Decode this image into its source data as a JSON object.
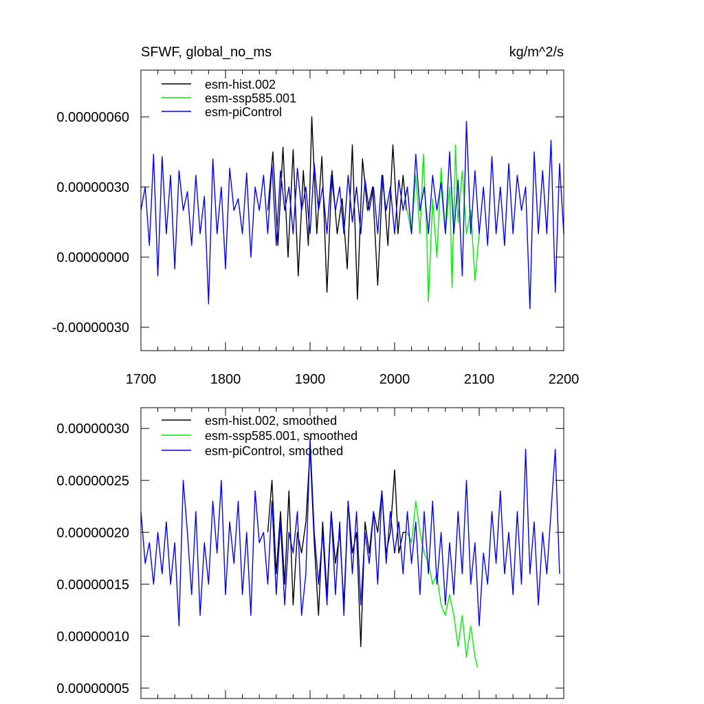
{
  "chart_data": [
    {
      "type": "line",
      "title_left": "SFWF, global_no_ms",
      "title_right": "kg/m^2/s",
      "xlim": [
        1700,
        2200
      ],
      "ylim": [
        -4e-07,
        8e-07
      ],
      "x_ticks": [
        1700,
        1800,
        1900,
        2000,
        2100,
        2200
      ],
      "x_tick_labels": [
        "1700",
        "1800",
        "1900",
        "2000",
        "2100",
        "2200"
      ],
      "y_ticks": [
        -3e-07,
        0.0,
        3e-07,
        6e-07
      ],
      "y_tick_labels": [
        "-0.00000030",
        "0.00000000",
        "0.00000030",
        "0.00000060"
      ],
      "legend_position": "top-left",
      "series": [
        {
          "name": "esm-hist.002",
          "color": "#000000",
          "x": [
            1850,
            1856,
            1862,
            1868,
            1874,
            1880,
            1886,
            1892,
            1898,
            1902,
            1908,
            1914,
            1920,
            1926,
            1932,
            1938,
            1944,
            1950,
            1956,
            1962,
            1968,
            1974,
            1980,
            1986,
            1992,
            1998,
            2004,
            2010,
            2014
          ],
          "y": [
            2e-07,
            4.5e-07,
            5e-08,
            4.7e-07,
            0.0,
            4.6e-07,
            -8e-08,
            3.7e-07,
            5e-08,
            6e-07,
            1e-07,
            4.3e-07,
            -1.5e-07,
            3.7e-07,
            1e-07,
            2.5e-07,
            -5e-08,
            4.8e-07,
            -1.8e-07,
            4.2e-07,
            2e-07,
            3e-07,
            -1.2e-07,
            3.5e-07,
            5e-08,
            4.8e-07,
            1e-07,
            3.5e-07,
            2e-07
          ]
        },
        {
          "name": "esm-ssp585.001",
          "color": "#00ee00",
          "x": [
            2015,
            2020,
            2025,
            2030,
            2034,
            2038,
            2040,
            2045,
            2050,
            2055,
            2060,
            2065,
            2068,
            2072,
            2075,
            2080,
            2085,
            2090,
            2095,
            2100
          ],
          "y": [
            2e-07,
            1e-07,
            3.5e-07,
            1e-07,
            4.4e-07,
            1e-07,
            -1.9e-07,
            2.5e-07,
            0.0,
            3.8e-07,
            1e-07,
            3e-07,
            -1.3e-07,
            4.8e-07,
            1.5e-07,
            3.7e-07,
            1e-07,
            2e-07,
            -1e-07,
            1e-07
          ]
        },
        {
          "name": "esm-piControl",
          "color": "#0000ee",
          "x": [
            1700,
            1705,
            1710,
            1715,
            1720,
            1725,
            1730,
            1735,
            1740,
            1745,
            1750,
            1755,
            1760,
            1765,
            1770,
            1775,
            1780,
            1785,
            1790,
            1795,
            1800,
            1805,
            1810,
            1815,
            1820,
            1825,
            1830,
            1835,
            1840,
            1845,
            1850,
            1855,
            1860,
            1865,
            1870,
            1875,
            1880,
            1885,
            1890,
            1895,
            1900,
            1905,
            1910,
            1915,
            1920,
            1925,
            1930,
            1935,
            1940,
            1945,
            1950,
            1955,
            1960,
            1965,
            1970,
            1975,
            1980,
            1985,
            1990,
            1995,
            2000,
            2005,
            2010,
            2015,
            2020,
            2025,
            2030,
            2035,
            2040,
            2045,
            2050,
            2055,
            2060,
            2065,
            2070,
            2075,
            2080,
            2085,
            2090,
            2095,
            2100,
            2105,
            2110,
            2115,
            2120,
            2125,
            2130,
            2135,
            2140,
            2145,
            2150,
            2155,
            2160,
            2165,
            2170,
            2175,
            2180,
            2185,
            2190,
            2195,
            2200
          ],
          "y": [
            2e-07,
            3e-07,
            5e-08,
            4.4e-07,
            -8e-08,
            4.3e-07,
            1e-07,
            3.5e-07,
            -5e-08,
            3.7e-07,
            2e-07,
            2.8e-07,
            5e-08,
            3.5e-07,
            1e-07,
            2.6e-07,
            -2e-07,
            4.2e-07,
            1e-07,
            3e-07,
            -5e-08,
            3.8e-07,
            2e-07,
            2.5e-07,
            1e-07,
            3.6e-07,
            0.0,
            3e-07,
            2e-07,
            3.5e-07,
            1e-07,
            4e-07,
            5e-08,
            3.7e-07,
            2e-07,
            3e-07,
            1e-07,
            3.8e-07,
            2e-07,
            3e-07,
            1e-07,
            4e-07,
            2e-07,
            3e-07,
            1e-07,
            3.5e-07,
            2e-07,
            3e-07,
            1e-07,
            3.5e-07,
            1.5e-07,
            3e-07,
            1e-07,
            3.3e-07,
            2e-07,
            3e-07,
            1e-07,
            3.5e-07,
            2e-07,
            3e-07,
            1e-07,
            3.3e-07,
            2e-07,
            3e-07,
            1e-07,
            4.4e-07,
            2e-07,
            3e-07,
            1e-07,
            3.5e-07,
            2e-07,
            3.2e-07,
            1e-07,
            4.5e-07,
            1e-07,
            3.3e-07,
            -8e-08,
            5.8e-07,
            1e-07,
            3.7e-07,
            1e-07,
            3e-07,
            5e-08,
            4.3e-07,
            1e-07,
            3e-07,
            5e-08,
            4e-07,
            1e-07,
            3.5e-07,
            2e-07,
            3e-07,
            -2.2e-07,
            4.5e-07,
            1e-07,
            3.7e-07,
            1e-07,
            5e-07,
            -1.5e-07,
            4e-07,
            1e-07
          ]
        }
      ]
    },
    {
      "type": "line",
      "xlim": [
        1700,
        2200
      ],
      "ylim": [
        4e-08,
        3.2e-07
      ],
      "y_ticks": [
        5e-08,
        1e-07,
        1.5e-07,
        2e-07,
        2.5e-07,
        3e-07
      ],
      "y_tick_labels": [
        "0.00000005",
        "0.00000010",
        "0.00000015",
        "0.00000020",
        "0.00000025",
        "0.00000030"
      ],
      "legend_position": "top-left",
      "series": [
        {
          "name": "esm-hist.002, smoothed",
          "color": "#000000",
          "x": [
            1850,
            1855,
            1860,
            1865,
            1870,
            1875,
            1880,
            1885,
            1890,
            1895,
            1900,
            1905,
            1910,
            1915,
            1920,
            1925,
            1930,
            1935,
            1940,
            1945,
            1950,
            1955,
            1960,
            1965,
            1970,
            1975,
            1980,
            1985,
            1990,
            1995,
            2000,
            2005,
            2010,
            2014
          ],
          "y": [
            2e-07,
            2.5e-07,
            1.6e-07,
            2.2e-07,
            1.5e-07,
            2.4e-07,
            1.3e-07,
            2e-07,
            1.8e-07,
            2.1e-07,
            2.8e-07,
            1.9e-07,
            1.2e-07,
            2.1e-07,
            1.4e-07,
            2.2e-07,
            1.7e-07,
            2e-07,
            1.3e-07,
            2.3e-07,
            1.8e-07,
            2e-07,
            9e-08,
            2.1e-07,
            1.8e-07,
            2.2e-07,
            2e-07,
            2.4e-07,
            1.8e-07,
            2e-07,
            2.6e-07,
            1.8e-07,
            2e-07,
            2e-07
          ]
        },
        {
          "name": "esm-ssp585.001, smoothed",
          "color": "#00ee00",
          "x": [
            2015,
            2020,
            2025,
            2030,
            2035,
            2040,
            2045,
            2050,
            2055,
            2060,
            2065,
            2070,
            2075,
            2080,
            2085,
            2090,
            2095,
            2098
          ],
          "y": [
            2e-07,
            1.9e-07,
            2.3e-07,
            2e-07,
            1.8e-07,
            1.7e-07,
            1.5e-07,
            1.6e-07,
            1.3e-07,
            1.2e-07,
            1.4e-07,
            1.2e-07,
            9e-08,
            1.2e-07,
            8e-08,
            1.1e-07,
            8e-08,
            7e-08
          ]
        },
        {
          "name": "esm-piControl, smoothed",
          "color": "#0000ee",
          "x": [
            1700,
            1705,
            1710,
            1715,
            1720,
            1725,
            1730,
            1735,
            1740,
            1745,
            1750,
            1755,
            1760,
            1765,
            1770,
            1775,
            1780,
            1785,
            1790,
            1795,
            1800,
            1805,
            1810,
            1815,
            1820,
            1825,
            1830,
            1835,
            1840,
            1845,
            1850,
            1855,
            1860,
            1865,
            1870,
            1875,
            1880,
            1885,
            1890,
            1895,
            1900,
            1905,
            1910,
            1915,
            1920,
            1925,
            1930,
            1935,
            1940,
            1945,
            1950,
            1955,
            1960,
            1965,
            1970,
            1975,
            1980,
            1985,
            1990,
            1995,
            2000,
            2005,
            2010,
            2015,
            2020,
            2025,
            2030,
            2035,
            2040,
            2045,
            2050,
            2055,
            2060,
            2065,
            2070,
            2075,
            2080,
            2085,
            2090,
            2095,
            2100,
            2105,
            2110,
            2115,
            2120,
            2125,
            2130,
            2135,
            2140,
            2145,
            2150,
            2155,
            2160,
            2165,
            2170,
            2175,
            2180,
            2185,
            2190,
            2195
          ],
          "y": [
            2.2e-07,
            1.7e-07,
            1.9e-07,
            1.5e-07,
            2e-07,
            1.6e-07,
            2.1e-07,
            1.5e-07,
            1.9e-07,
            1.1e-07,
            2.5e-07,
            2e-07,
            1.4e-07,
            2.2e-07,
            1.2e-07,
            1.9e-07,
            1.5e-07,
            2.3e-07,
            1.8e-07,
            2.5e-07,
            1.4e-07,
            2.1e-07,
            1.7e-07,
            2.3e-07,
            1.4e-07,
            2e-07,
            1.2e-07,
            2.4e-07,
            1.9e-07,
            2e-07,
            1.5e-07,
            2.3e-07,
            1.4e-07,
            2.1e-07,
            1.3e-07,
            2e-07,
            1.8e-07,
            2.2e-07,
            1.2e-07,
            1.6e-07,
            2.9e-07,
            2e-07,
            1.5e-07,
            2e-07,
            1.3e-07,
            2.2e-07,
            1.4e-07,
            2.1e-07,
            1.2e-07,
            2.3e-07,
            1.6e-07,
            2.2e-07,
            1.3e-07,
            2e-07,
            1.7e-07,
            2.2e-07,
            1.5e-07,
            2.4e-07,
            1.7e-07,
            2.2e-07,
            1.8e-07,
            2.1e-07,
            1.6e-07,
            2.2e-07,
            1.7e-07,
            2.1e-07,
            1.4e-07,
            2.2e-07,
            1.6e-07,
            2.3e-07,
            1.5e-07,
            2e-07,
            1.3e-07,
            1.9e-07,
            1.4e-07,
            2.2e-07,
            1.6e-07,
            2.5e-07,
            1.5e-07,
            1.9e-07,
            1.1e-07,
            1.8e-07,
            1.5e-07,
            2.2e-07,
            1.7e-07,
            2.4e-07,
            1.6e-07,
            2e-07,
            1.4e-07,
            2.2e-07,
            1.5e-07,
            2.8e-07,
            1.6e-07,
            2.1e-07,
            1.3e-07,
            2e-07,
            1.6e-07,
            2.2e-07,
            2.8e-07,
            1.6e-07
          ]
        }
      ]
    }
  ]
}
